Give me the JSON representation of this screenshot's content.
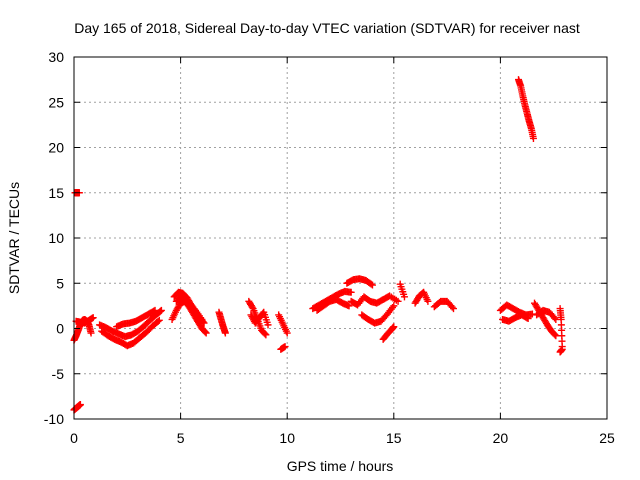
{
  "chart_data": {
    "type": "scatter",
    "title": "Day 165 of 2018, Sidereal Day-to-day VTEC variation (SDTVAR) for receiver nast",
    "xlabel": "GPS time / hours",
    "ylabel": "SDTVAR / TECUs",
    "xlim": [
      0,
      25
    ],
    "ylim": [
      -10,
      30
    ],
    "xticks": [
      0,
      5,
      10,
      15,
      20,
      25
    ],
    "yticks": [
      -10,
      -5,
      0,
      5,
      10,
      15,
      20,
      25,
      30
    ],
    "grid": true,
    "marker": "+",
    "color": "#ff0000",
    "segments": [
      {
        "x": [
          0.0,
          0.05,
          0.1,
          0.15,
          0.2,
          0.25,
          0.3
        ],
        "y": [
          -9.0,
          -8.9,
          -8.8,
          -8.7,
          -8.6,
          -8.5,
          -8.4
        ]
      },
      {
        "x": [
          0.05,
          0.1,
          0.15,
          0.2,
          0.25
        ],
        "y": [
          15.0,
          15.0,
          15.0,
          15.0,
          15.0
        ]
      },
      {
        "x": [
          0.0,
          0.1,
          0.2,
          0.3,
          0.4,
          0.5,
          0.6,
          0.7,
          0.8
        ],
        "y": [
          -1.3,
          -0.8,
          -0.2,
          0.5,
          0.9,
          1.0,
          0.8,
          0.4,
          -0.5
        ]
      },
      {
        "x": [
          0.1,
          0.3,
          0.5,
          0.7,
          0.9
        ],
        "y": [
          0.8,
          0.7,
          0.6,
          0.9,
          1.2
        ]
      },
      {
        "x": [
          1.2,
          1.5,
          1.8,
          2.1,
          2.4,
          2.7,
          3.0,
          3.3,
          3.6,
          3.9,
          4.1
        ],
        "y": [
          0.4,
          0.1,
          -0.3,
          -0.6,
          -0.9,
          -0.7,
          -0.3,
          0.3,
          1.0,
          1.6,
          2.0
        ]
      },
      {
        "x": [
          1.3,
          1.6,
          1.9,
          2.2,
          2.5,
          2.8,
          3.1,
          3.4,
          3.7,
          4.0
        ],
        "y": [
          -0.3,
          -0.8,
          -1.2,
          -1.5,
          -1.9,
          -1.6,
          -1.0,
          -0.4,
          0.3,
          0.9
        ]
      },
      {
        "x": [
          2.0,
          2.3,
          2.6,
          2.9,
          3.2,
          3.5,
          3.8
        ],
        "y": [
          0.2,
          0.5,
          0.6,
          0.8,
          1.2,
          1.6,
          2.0
        ]
      },
      {
        "x": [
          4.7,
          4.9,
          5.1,
          5.3,
          5.5,
          5.7,
          5.9,
          6.1
        ],
        "y": [
          3.5,
          4.0,
          3.9,
          3.4,
          2.6,
          1.9,
          1.2,
          0.6
        ]
      },
      {
        "x": [
          4.6,
          4.8,
          5.0,
          5.2,
          5.4,
          5.6,
          5.8,
          6.0,
          6.2
        ],
        "y": [
          1.0,
          2.0,
          2.8,
          3.0,
          2.4,
          1.6,
          0.8,
          0.0,
          -0.5
        ]
      },
      {
        "x": [
          4.8,
          5.1,
          5.4,
          5.7,
          6.0
        ],
        "y": [
          3.0,
          3.6,
          2.8,
          2.0,
          1.0
        ]
      },
      {
        "x": [
          6.8,
          6.9,
          7.0,
          7.1
        ],
        "y": [
          1.8,
          1.0,
          0.2,
          -0.5
        ]
      },
      {
        "x": [
          8.2,
          8.4,
          8.6,
          8.8,
          9.0
        ],
        "y": [
          3.0,
          2.2,
          1.0,
          -0.2,
          -0.7
        ]
      },
      {
        "x": [
          8.3,
          8.5,
          8.7,
          8.9,
          9.1
        ],
        "y": [
          1.5,
          0.6,
          1.2,
          1.8,
          0.4
        ]
      },
      {
        "x": [
          9.6,
          9.8,
          10.0
        ],
        "y": [
          1.5,
          0.5,
          -0.5
        ]
      },
      {
        "x": [
          9.7,
          9.9
        ],
        "y": [
          -2.3,
          -2.0
        ]
      },
      {
        "x": [
          11.2,
          11.5,
          11.8,
          12.1,
          12.4,
          12.7,
          13.0
        ],
        "y": [
          2.2,
          2.6,
          3.0,
          3.4,
          3.8,
          4.1,
          4.0
        ]
      },
      {
        "x": [
          11.4,
          11.7,
          12.0,
          12.3,
          12.6,
          12.9
        ],
        "y": [
          2.0,
          2.5,
          3.0,
          3.2,
          2.8,
          2.5
        ]
      },
      {
        "x": [
          12.8,
          13.1,
          13.4,
          13.7,
          14.0
        ],
        "y": [
          5.0,
          5.4,
          5.5,
          5.3,
          4.8
        ]
      },
      {
        "x": [
          13.5,
          13.8,
          14.1,
          14.4,
          14.7,
          15.0
        ],
        "y": [
          1.5,
          1.0,
          0.6,
          0.8,
          1.6,
          2.5
        ]
      },
      {
        "x": [
          13.0,
          13.3,
          13.6,
          13.9,
          14.2,
          14.5,
          14.8,
          15.2
        ],
        "y": [
          3.0,
          2.6,
          3.5,
          3.0,
          2.8,
          3.2,
          3.6,
          3.0
        ]
      },
      {
        "x": [
          14.5,
          14.7,
          14.9,
          15.0
        ],
        "y": [
          -1.2,
          -0.6,
          -0.1,
          0.2
        ]
      },
      {
        "x": [
          15.3,
          15.5
        ],
        "y": [
          4.9,
          3.5
        ]
      },
      {
        "x": [
          16.0,
          16.2,
          16.4,
          16.6
        ],
        "y": [
          2.8,
          3.6,
          4.0,
          3.0
        ]
      },
      {
        "x": [
          16.9,
          17.2,
          17.5,
          17.8
        ],
        "y": [
          2.4,
          3.0,
          3.0,
          2.2
        ]
      },
      {
        "x": [
          20.0,
          20.3,
          20.6,
          20.9,
          21.2,
          21.5
        ],
        "y": [
          2.0,
          2.6,
          2.2,
          1.8,
          1.5,
          1.6
        ]
      },
      {
        "x": [
          20.1,
          20.4,
          20.7,
          21.0,
          21.3
        ],
        "y": [
          1.0,
          0.8,
          1.2,
          1.5,
          1.1
        ]
      },
      {
        "x": [
          20.85,
          20.95,
          21.05,
          21.15,
          21.25,
          21.35,
          21.45,
          21.55
        ],
        "y": [
          27.5,
          26.8,
          25.7,
          24.7,
          23.8,
          22.9,
          22.1,
          21.0
        ]
      },
      {
        "x": [
          21.6,
          21.8,
          22.0,
          22.2,
          22.4,
          22.6
        ],
        "y": [
          2.8,
          2.0,
          1.2,
          0.4,
          -0.3,
          -0.8
        ]
      },
      {
        "x": [
          21.7,
          22.0,
          22.3,
          22.6
        ],
        "y": [
          1.5,
          2.0,
          1.8,
          1.0
        ]
      },
      {
        "x": [
          22.8,
          22.85,
          22.9
        ],
        "y": [
          2.2,
          1.0,
          -2.0
        ]
      },
      {
        "x": [
          22.8,
          22.9
        ],
        "y": [
          -2.6,
          -2.3
        ]
      }
    ]
  }
}
